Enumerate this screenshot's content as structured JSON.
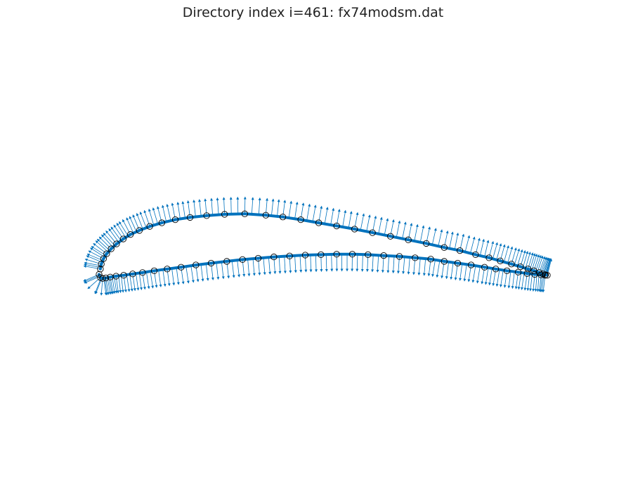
{
  "chart_data": {
    "type": "scatter",
    "title": "Directory index i=461: fx74modsm.dat",
    "xlabel": "",
    "ylabel": "",
    "axis_visible": false,
    "grid": false,
    "xlim": [
      -0.03,
      1.03
    ],
    "aspect": "equal",
    "series": [
      {
        "role": "upper-surface",
        "line_color": "#0072BD",
        "marker": "circle",
        "points": [
          [
            0.003,
            0.016
          ],
          [
            0.005,
            0.027
          ],
          [
            0.01,
            0.039
          ],
          [
            0.017,
            0.05
          ],
          [
            0.027,
            0.061
          ],
          [
            0.039,
            0.072
          ],
          [
            0.054,
            0.083
          ],
          [
            0.07,
            0.093
          ],
          [
            0.09,
            0.102
          ],
          [
            0.113,
            0.111
          ],
          [
            0.14,
            0.119
          ],
          [
            0.17,
            0.126
          ],
          [
            0.203,
            0.131
          ],
          [
            0.24,
            0.135
          ],
          [
            0.28,
            0.138
          ],
          [
            0.325,
            0.139
          ],
          [
            0.372,
            0.136
          ],
          [
            0.41,
            0.132
          ],
          [
            0.45,
            0.126
          ],
          [
            0.49,
            0.119
          ],
          [
            0.53,
            0.112
          ],
          [
            0.57,
            0.105
          ],
          [
            0.61,
            0.097
          ],
          [
            0.65,
            0.089
          ],
          [
            0.69,
            0.081
          ],
          [
            0.73,
            0.073
          ],
          [
            0.77,
            0.064
          ],
          [
            0.805,
            0.057
          ],
          [
            0.84,
            0.048
          ],
          [
            0.87,
            0.041
          ],
          [
            0.895,
            0.034
          ],
          [
            0.92,
            0.027
          ],
          [
            0.94,
            0.021
          ],
          [
            0.957,
            0.016
          ],
          [
            0.97,
            0.012
          ],
          [
            0.982,
            0.008
          ],
          [
            0.99,
            0.005
          ],
          [
            0.996,
            0.003
          ],
          [
            1.0,
            0.002
          ]
        ]
      },
      {
        "role": "lower-surface",
        "line_color": "#0072BD",
        "marker": "circle",
        "points": [
          [
            0.0,
            0.004
          ],
          [
            0.003,
            -0.003
          ],
          [
            0.008,
            -0.005
          ],
          [
            0.015,
            -0.004
          ],
          [
            0.025,
            -0.002
          ],
          [
            0.038,
            0.0
          ],
          [
            0.055,
            0.002
          ],
          [
            0.075,
            0.005
          ],
          [
            0.097,
            0.008
          ],
          [
            0.123,
            0.012
          ],
          [
            0.152,
            0.016
          ],
          [
            0.183,
            0.02
          ],
          [
            0.216,
            0.025
          ],
          [
            0.25,
            0.029
          ],
          [
            0.285,
            0.033
          ],
          [
            0.32,
            0.037
          ],
          [
            0.355,
            0.04
          ],
          [
            0.39,
            0.043
          ],
          [
            0.425,
            0.045
          ],
          [
            0.46,
            0.047
          ],
          [
            0.495,
            0.048
          ],
          [
            0.53,
            0.049
          ],
          [
            0.565,
            0.049
          ],
          [
            0.6,
            0.048
          ],
          [
            0.635,
            0.046
          ],
          [
            0.67,
            0.044
          ],
          [
            0.705,
            0.041
          ],
          [
            0.74,
            0.038
          ],
          [
            0.77,
            0.033
          ],
          [
            0.8,
            0.029
          ],
          [
            0.83,
            0.025
          ],
          [
            0.86,
            0.02
          ],
          [
            0.885,
            0.016
          ],
          [
            0.91,
            0.012
          ],
          [
            0.935,
            0.009
          ],
          [
            0.955,
            0.006
          ],
          [
            0.972,
            0.004
          ],
          [
            0.986,
            0.003
          ],
          [
            0.995,
            0.002
          ]
        ]
      }
    ]
  }
}
